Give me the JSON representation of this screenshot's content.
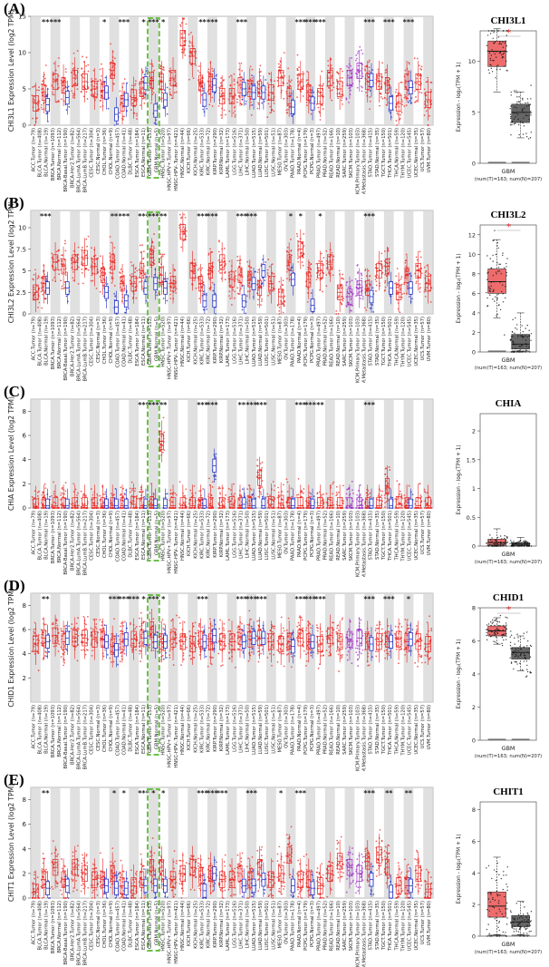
{
  "panel_labels": [
    "(A)",
    "(B)",
    "(C)",
    "(D)",
    "(E)"
  ],
  "tumor_types": [
    "ACC",
    "BLCA",
    "BRCA",
    "BRCA-Basal",
    "BRCA-Her2",
    "BRCA-LumA",
    "BRCA-LumB",
    "CESC",
    "CHOL",
    "COAD",
    "DLBC",
    "ESCA",
    "GBM",
    "HNSC",
    "HNSC-HPV+",
    "HNSC-HPV-",
    "KICH",
    "KIRC",
    "KIRP",
    "LAML",
    "LGG",
    "LIHC",
    "LUAD",
    "LUSC",
    "MESO",
    "OV",
    "PAAD",
    "PCPG",
    "PRAD",
    "READ",
    "SARC",
    "SKCM",
    "SKCM.Primary",
    "SKCM.Metastasis",
    "STAD",
    "TGCT",
    "THCA",
    "THYM",
    "UCEC",
    "UCS",
    "UVM"
  ],
  "x_tick_labels": [
    "ACC.Tumor (n=79)",
    "BLCA.Tumor (n=408)",
    "BLCA.Normal (n=19)",
    "BRCA.Tumor (n=1093)",
    "BRCA.Normal (n=112)",
    "BRCA-Basal.Tumor (n=190)",
    "BRCA-Her2.Tumor (n=82)",
    "BRCA-LumA.Tumor (n=564)",
    "BRCA-LumB.Tumor (n=217)",
    "CESC.Tumor (n=304)",
    "CESC.Normal (n=3)",
    "CHOL.Tumor (n=36)",
    "CHOL.Normal (n=9)",
    "COAD.Tumor (n=457)",
    "COAD.Normal (n=41)",
    "DLBC.Tumor (n=48)",
    "ESCA.Tumor (n=184)",
    "ESCA.Normal (n=11)",
    "GBM.Tumor (n=153)",
    "GBM.Normal (n=5)",
    "HNSC.Tumor (n=520)",
    "HNSC-HPV+.Tumor (n=97)",
    "HNSC-HPV-.Tumor (n=421)",
    "HNSC.Normal (n=44)",
    "KICH.Tumor (n=66)",
    "KICH.Normal (n=25)",
    "KIRC.Tumor (n=533)",
    "KIRC.Normal (n=72)",
    "KIRP.Tumor (n=290)",
    "KIRP.Normal (n=32)",
    "LAML.Tumor (n=173)",
    "LGG.Tumor (n=516)",
    "LIHC.Tumor (n=371)",
    "LIHC.Normal (n=50)",
    "LUAD.Tumor (n=515)",
    "LUAD.Normal (n=59)",
    "LUSC.Tumor (n=501)",
    "LUSC.Normal (n=51)",
    "MESO.Tumor (n=87)",
    "OV.Tumor (n=303)",
    "PAAD.Tumor (n=178)",
    "PAAD.Normal (n=4)",
    "PCPG.Tumor (n=179)",
    "PCPG.Normal (n=3)",
    "PRAD.Tumor (n=497)",
    "PRAD.Normal (n=52)",
    "READ.Tumor (n=166)",
    "READ.Normal (n=10)",
    "SARC.Tumor (n=259)",
    "SKCM.Tumor (n=103)",
    "SKCM.Primary.Tumor (n=103)",
    "SKCM.Metastasis.Tumor (n=368)",
    "STAD.Tumor (n=415)",
    "STAD.Normal (n=35)",
    "TGCT.Tumor (n=150)",
    "THCA.Tumor (n=501)",
    "THCA.Normal (n=59)",
    "THYM.Tumor (n=120)",
    "UCEC.Tumor (n=545)",
    "UCEC.Normal (n=35)",
    "UCS.Tumor (n=57)",
    "UVM.Tumor (n=80)"
  ],
  "gbm_xlabel": "GBM",
  "gbm_sub": "(num(T)=163; num(N)=207)",
  "gbm_ylabel": "Expression - log₂(TPM + 1)",
  "gbm_star": "*",
  "chart_data": [
    {
      "type": "box",
      "gene": "CHI3L1",
      "title": "",
      "ylabel": "CHI3L1 Expression Level (log2 TPM)",
      "ylim": [
        0,
        15
      ],
      "yticks": [
        0,
        5,
        10,
        15
      ],
      "tumor_medians": [
        3.0,
        4.5,
        6.0,
        5.5,
        6.5,
        6.0,
        5.0,
        4.8,
        7.5,
        3.0,
        3.8,
        5.0,
        6.2,
        6.0,
        6.5,
        12.0,
        9.5,
        5.8,
        6.0,
        4.0,
        4.0,
        5.5,
        5.0,
        5.0,
        4.5,
        6.5,
        4.0,
        6.0,
        4.5,
        4.0,
        6.5,
        5.0,
        6.5,
        7.5,
        6.0,
        6.0,
        5.5,
        3.0,
        6.0,
        6.0,
        3.5
      ],
      "normal_medians": [
        null,
        2.8,
        null,
        3.8,
        null,
        null,
        null,
        4.5,
        1.5,
        3.5,
        null,
        5.8,
        2.0,
        3.5,
        null,
        null,
        null,
        3.5,
        5.5,
        null,
        null,
        5.0,
        4.5,
        4.5,
        null,
        null,
        2.5,
        null,
        3.0,
        null,
        null,
        null,
        null,
        null,
        6.2,
        null,
        3.0,
        null,
        5.2,
        null,
        null
      ],
      "significance": [
        "",
        "**",
        "***",
        "",
        "",
        "",
        "",
        "*",
        "",
        "***",
        "",
        "*",
        "***",
        "*",
        "",
        "",
        "",
        "**",
        "***",
        "",
        "",
        "***",
        "",
        "",
        "",
        "",
        "",
        "***",
        "***",
        "***",
        "",
        "",
        "",
        "",
        "***",
        "",
        "***",
        "",
        "***",
        "",
        ""
      ],
      "highlight": "GBM",
      "gbm": {
        "title": "CHI3L1",
        "ylim": [
          0,
          13
        ],
        "yticks": [
          0,
          5,
          10
        ],
        "tumor": {
          "q1": 9.5,
          "median": 11.0,
          "q3": 12.0,
          "whisker_low": 7.0,
          "whisker_high": 13.2
        },
        "normal": {
          "q1": 4.0,
          "median": 5.0,
          "q3": 5.8,
          "whisker_low": 2.5,
          "whisker_high": 7.0
        },
        "significant": true
      }
    },
    {
      "type": "box",
      "gene": "CHI3L2",
      "title": "",
      "ylabel": "CHI3L2 Expression Level (log2 TPM)",
      "ylim": [
        0,
        12
      ],
      "yticks": [
        0,
        2.5,
        5.0,
        7.5,
        10.0,
        12.5
      ],
      "tumor_medians": [
        2.5,
        3.5,
        6.0,
        5.5,
        6.0,
        6.5,
        5.5,
        4.5,
        6.0,
        3.5,
        3.5,
        5.0,
        6.5,
        4.5,
        3.5,
        9.5,
        5.0,
        3.5,
        5.0,
        6.0,
        4.0,
        4.5,
        4.0,
        3.0,
        3.5,
        2.0,
        6.0,
        7.5,
        4.0,
        5.0,
        6.0,
        2.5,
        2.0,
        3.0,
        3.0,
        5.0,
        5.5,
        2.5,
        4.5,
        5.0,
        3.5
      ],
      "normal_medians": [
        null,
        3.0,
        null,
        3.0,
        null,
        null,
        null,
        2.5,
        0.8,
        1.5,
        null,
        3.0,
        3.5,
        3.0,
        null,
        null,
        null,
        1.5,
        1.5,
        null,
        null,
        1.5,
        3.5,
        5.0,
        null,
        null,
        4.0,
        null,
        1.0,
        null,
        null,
        null,
        null,
        null,
        2.0,
        null,
        3.0,
        null,
        3.0,
        null,
        null
      ],
      "significance": [
        "",
        "***",
        "",
        "",
        "",
        "",
        "",
        "",
        "**",
        "***",
        "",
        "***",
        "***",
        "**",
        "",
        "",
        "",
        "***",
        "***",
        "",
        "",
        "***",
        "***",
        "",
        "",
        "",
        "*",
        "*",
        "",
        "*",
        "",
        "",
        "",
        "",
        "***",
        "",
        "",
        "",
        "",
        "",
        ""
      ],
      "highlight": "GBM",
      "gbm": {
        "title": "CHI3L2",
        "ylim": [
          0,
          13
        ],
        "yticks": [
          0,
          2,
          4,
          6,
          8,
          10,
          12
        ],
        "tumor": {
          "q1": 6.0,
          "median": 7.2,
          "q3": 8.5,
          "whisker_low": 3.5,
          "whisker_high": 11.5
        },
        "normal": {
          "q1": 0.3,
          "median": 0.8,
          "q3": 1.8,
          "whisker_low": 0.0,
          "whisker_high": 4.0
        },
        "significant": true
      }
    },
    {
      "type": "box",
      "gene": "CHIA",
      "title": "",
      "ylabel": "CHIA Expression Level (log2 TPM)",
      "ylim": [
        0,
        9
      ],
      "yticks": [
        0,
        2,
        4,
        6,
        8
      ],
      "tumor_medians": [
        0.1,
        0.2,
        0.2,
        0.2,
        0.2,
        0.2,
        0.2,
        0.2,
        0.2,
        0.2,
        0.3,
        0.2,
        0.3,
        5.5,
        0.2,
        0.2,
        0.2,
        0.2,
        0.2,
        0.2,
        0.3,
        0.2,
        0.2,
        2.5,
        0.3,
        0.4,
        0.2,
        0.2,
        0.2,
        0.2,
        0.2,
        0.2,
        0.2,
        0.2,
        0.2,
        0.2,
        1.8,
        0.3,
        0.2,
        0.2,
        0.2
      ],
      "normal_medians": [
        null,
        0.2,
        null,
        0.2,
        null,
        null,
        null,
        0.2,
        0.2,
        0.2,
        null,
        0.2,
        0.2,
        0.2,
        null,
        null,
        null,
        0.2,
        3.5,
        null,
        null,
        0.3,
        0.2,
        0.2,
        null,
        null,
        0.2,
        null,
        0.2,
        null,
        null,
        null,
        null,
        null,
        0.2,
        null,
        0.2,
        null,
        0.2,
        null,
        null
      ],
      "significance": [
        "",
        "",
        "",
        "",
        "",
        "",
        "",
        "",
        "",
        "",
        "",
        "***",
        "***",
        "**",
        "",
        "",
        "",
        "***",
        "***",
        "",
        "",
        "**",
        "***",
        "***",
        "",
        "",
        "",
        "***",
        "***",
        "**",
        "",
        "",
        "",
        "",
        "***",
        "",
        "",
        "",
        "",
        "",
        ""
      ],
      "highlight": "GBM",
      "gbm": {
        "title": "CHIA",
        "ylim": [
          0,
          2.3
        ],
        "yticks": [
          0.0,
          0.5,
          1.0,
          1.5,
          2.0
        ],
        "tumor": {
          "q1": 0.02,
          "median": 0.06,
          "q3": 0.12,
          "whisker_low": 0.0,
          "whisker_high": 0.3
        },
        "normal": {
          "q1": 0.01,
          "median": 0.03,
          "q3": 0.06,
          "whisker_low": 0.0,
          "whisker_high": 0.15
        },
        "significant": false
      }
    },
    {
      "type": "box",
      "gene": "CHID1",
      "title": "",
      "ylabel": "CHID1 Expression Level (log2 TPM)",
      "ylim": [
        0,
        9
      ],
      "yticks": [
        2,
        4,
        6,
        8
      ],
      "tumor_medians": [
        4.8,
        5.3,
        5.5,
        5.0,
        5.3,
        5.3,
        5.2,
        5.2,
        4.6,
        5.0,
        5.2,
        5.3,
        6.0,
        5.0,
        5.2,
        5.0,
        4.8,
        5.2,
        5.0,
        5.0,
        5.0,
        5.4,
        5.2,
        5.3,
        5.0,
        4.8,
        5.0,
        5.3,
        5.0,
        4.8,
        5.5,
        5.0,
        5.2,
        5.3,
        5.0,
        5.0,
        5.2,
        5.2,
        5.0,
        5.0,
        4.8
      ],
      "normal_medians": [
        null,
        5.0,
        null,
        5.3,
        null,
        null,
        null,
        5.0,
        4.3,
        5.2,
        null,
        5.3,
        5.0,
        5.0,
        null,
        null,
        null,
        5.0,
        5.5,
        null,
        null,
        5.0,
        5.3,
        5.3,
        null,
        null,
        4.6,
        null,
        5.0,
        null,
        null,
        null,
        null,
        null,
        4.8,
        null,
        5.0,
        null,
        5.2,
        null,
        null
      ],
      "significance": [
        "",
        "**",
        "",
        "",
        "",
        "",
        "",
        "",
        "***",
        "***",
        "***",
        "*",
        "***",
        "*",
        "",
        "",
        "",
        "***",
        "",
        "",
        "",
        "***",
        "***",
        "***",
        "",
        "",
        "",
        "***",
        "***",
        "***",
        "",
        "",
        "",
        "",
        "***",
        "",
        "***",
        "",
        "*",
        "",
        ""
      ],
      "highlight": "GBM",
      "gbm": {
        "title": "CHID1",
        "ylim": [
          0,
          8
        ],
        "yticks": [
          0,
          2,
          4,
          6,
          8
        ],
        "tumor": {
          "q1": 6.3,
          "median": 6.6,
          "q3": 6.9,
          "whisker_low": 5.8,
          "whisker_high": 7.4
        },
        "normal": {
          "q1": 4.9,
          "median": 5.3,
          "q3": 5.6,
          "whisker_low": 4.2,
          "whisker_high": 6.3
        },
        "significant": true
      }
    },
    {
      "type": "box",
      "gene": "CHIT1",
      "title": "",
      "ylabel": "CHIT1 Expression Level (log2 TPM)",
      "ylim": [
        0,
        9
      ],
      "yticks": [
        0,
        2,
        4,
        6,
        8
      ],
      "tumor_medians": [
        0.5,
        1.5,
        2.5,
        1.5,
        2.5,
        2.0,
        1.5,
        1.5,
        2.0,
        1.0,
        1.0,
        1.5,
        2.5,
        2.5,
        1.5,
        2.0,
        2.5,
        1.8,
        2.0,
        1.5,
        1.5,
        2.0,
        1.5,
        2.5,
        1.5,
        2.0,
        3.5,
        1.5,
        1.5,
        1.0,
        2.0,
        3.0,
        2.5,
        2.0,
        3.0,
        3.5,
        2.5,
        1.0,
        1.0,
        2.0,
        0.5
      ],
      "normal_medians": [
        null,
        0.8,
        null,
        1.0,
        null,
        null,
        null,
        1.0,
        0.8,
        0.8,
        null,
        1.0,
        1.0,
        1.0,
        null,
        null,
        null,
        0.6,
        2.0,
        null,
        null,
        1.0,
        1.0,
        1.5,
        null,
        null,
        1.0,
        null,
        0.8,
        null,
        null,
        null,
        null,
        null,
        1.5,
        null,
        0.5,
        null,
        1.0,
        null,
        null
      ],
      "significance": [
        "",
        "**",
        "",
        "",
        "",
        "",
        "",
        "",
        "*",
        "*",
        "",
        "***",
        "*",
        "*",
        "",
        "",
        "",
        "***",
        "***",
        "***",
        "",
        "",
        "***",
        "",
        "",
        "*",
        "",
        "***",
        "",
        "",
        "",
        "",
        "",
        "",
        "***",
        "",
        "**",
        "",
        "**",
        "",
        ""
      ],
      "highlight": "GBM",
      "gbm": {
        "title": "CHIT1",
        "ylim": [
          0,
          8.5
        ],
        "yticks": [
          0,
          2,
          4,
          6,
          8
        ],
        "tumor": {
          "q1": 1.2,
          "median": 1.9,
          "q3": 2.8,
          "whisker_low": 0.1,
          "whisker_high": 5.0
        },
        "normal": {
          "q1": 0.6,
          "median": 0.9,
          "q3": 1.3,
          "whisker_low": 0.1,
          "whisker_high": 2.2
        },
        "significant": false
      }
    }
  ],
  "colors": {
    "tumor": "#e8231f",
    "normal": "#2432c8",
    "skcm": "#9b27c2",
    "gbm_tumor": "#ee6c6c",
    "gbm_normal": "#666666",
    "highlight": "#6cc04a",
    "shade": "#d6d6d6"
  }
}
